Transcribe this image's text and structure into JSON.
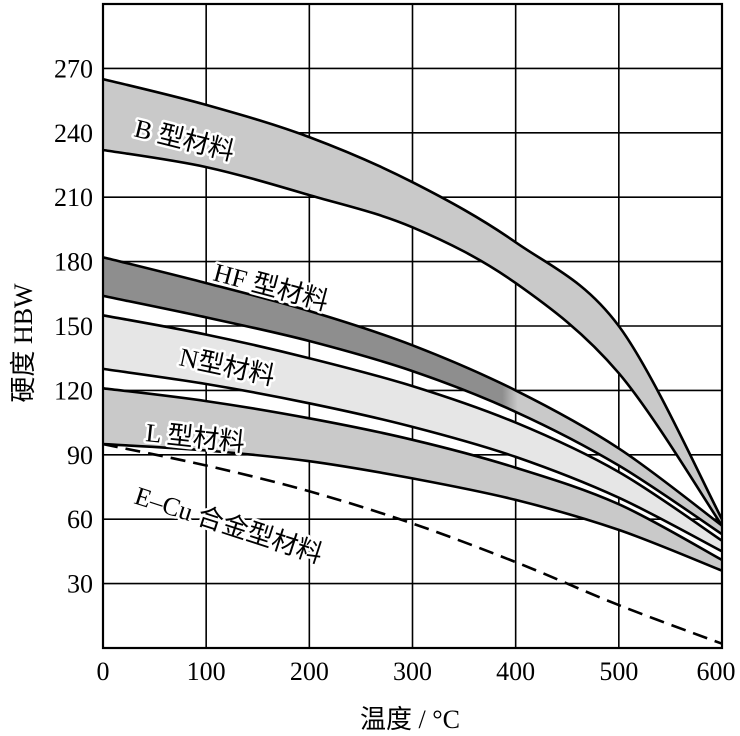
{
  "chart_data": {
    "type": "area",
    "xlabel": "温度 / °C",
    "ylabel": "硬度 HBW",
    "xlim": [
      0,
      600
    ],
    "ylim": [
      0,
      300
    ],
    "x_ticks": [
      0,
      100,
      200,
      300,
      400,
      500,
      600
    ],
    "y_ticks": [
      30,
      60,
      90,
      120,
      150,
      180,
      210,
      240,
      270
    ],
    "grid": true,
    "x": [
      0,
      100,
      200,
      300,
      400,
      500,
      600
    ],
    "series": [
      {
        "name": "B 型材料",
        "kind": "band",
        "fill": "#c9c9c9",
        "upper": [
          265,
          253,
          238,
          217,
          189,
          150,
          60
        ],
        "lower": [
          232,
          224,
          211,
          196,
          170,
          128,
          57
        ]
      },
      {
        "name": "HF 型材料",
        "kind": "band",
        "fill": "#8e8e8e",
        "fill_end": "#c9c9c9",
        "upper": [
          182,
          170,
          157,
          141,
          120,
          93,
          57
        ],
        "lower": [
          164,
          154,
          143,
          129,
          110,
          85,
          53
        ]
      },
      {
        "name": "N型材料",
        "kind": "band",
        "fill": "#e6e6e6",
        "upper": [
          155,
          146,
          135,
          122,
          105,
          82,
          50
        ],
        "lower": [
          130,
          123,
          114,
          103,
          89,
          70,
          45
        ]
      },
      {
        "name": "L 型材料",
        "kind": "band",
        "fill": "#c9c9c9",
        "upper": [
          121,
          115,
          107,
          97,
          84,
          67,
          41
        ],
        "lower": [
          95,
          92,
          87,
          79,
          69,
          55,
          36
        ]
      },
      {
        "name": "E–Cu 合金型材料",
        "kind": "line",
        "line_style": "dashed",
        "values": [
          95,
          85,
          73,
          58,
          40,
          20,
          2
        ]
      }
    ]
  }
}
